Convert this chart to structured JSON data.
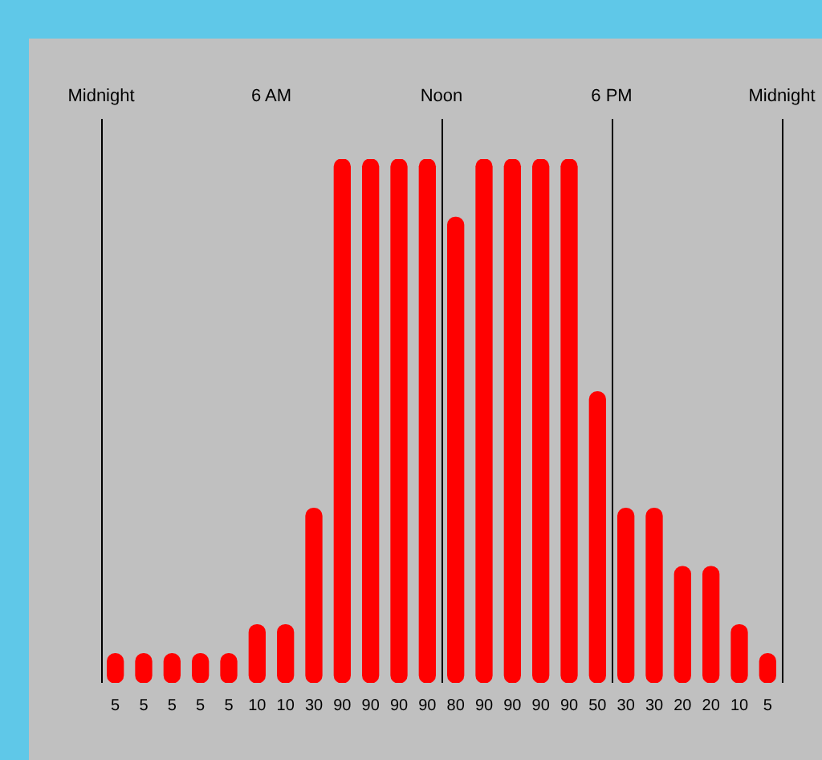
{
  "chart_data": {
    "type": "bar",
    "categories": [
      null,
      null,
      null,
      null,
      null,
      null,
      null,
      null,
      null,
      null,
      null,
      null,
      null,
      null,
      null,
      null,
      null,
      null,
      null,
      null,
      null,
      null,
      null,
      null
    ],
    "values": [
      5,
      5,
      5,
      5,
      5,
      10,
      10,
      30,
      90,
      90,
      90,
      90,
      80,
      90,
      90,
      90,
      90,
      50,
      30,
      30,
      20,
      20,
      10,
      5
    ],
    "color": "#ff0000",
    "ylim": [
      0,
      90
    ],
    "tick_labels": false,
    "data_labels": true,
    "annotations": [
      "Midnight",
      "6 AM",
      "Noon",
      "6 PM",
      "Midnight"
    ]
  }
}
